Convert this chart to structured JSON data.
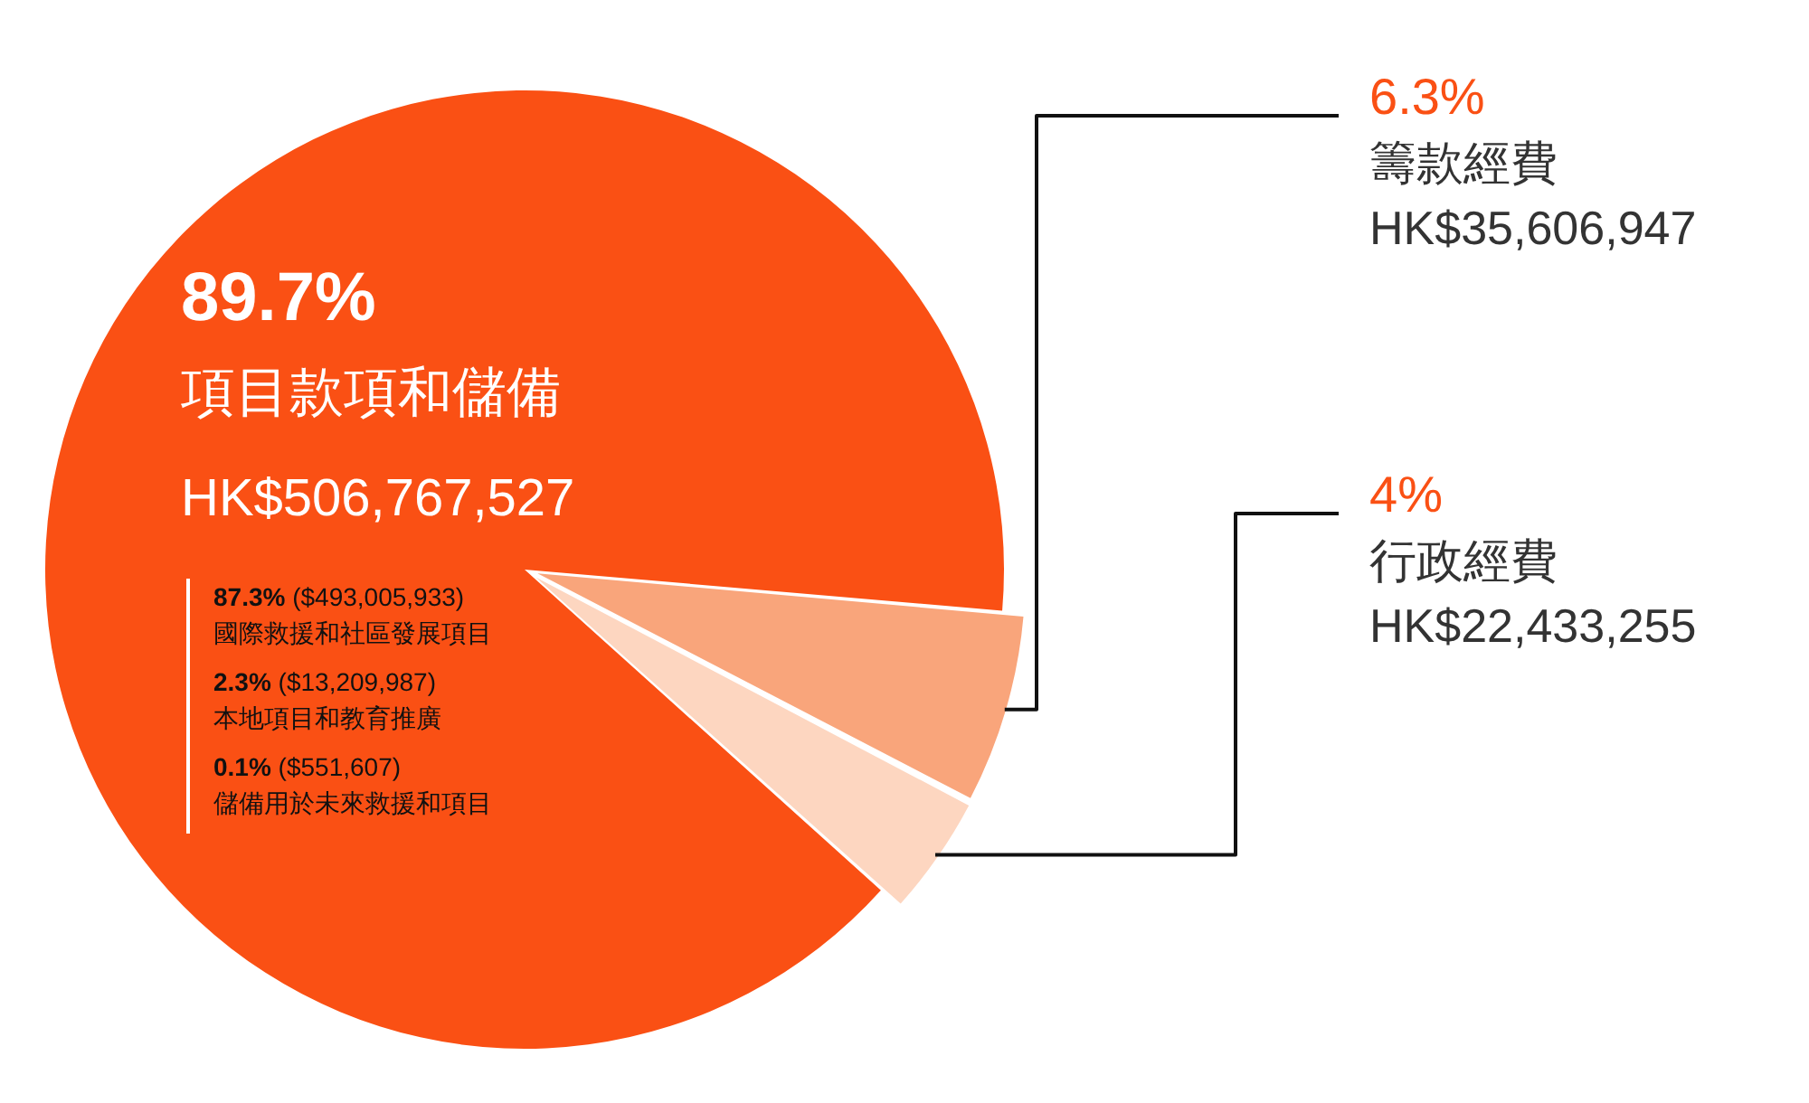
{
  "chart_data": {
    "type": "pie",
    "categories": [
      "項目款項和儲備",
      "籌款經費",
      "行政經費"
    ],
    "values": [
      89.7,
      6.3,
      4
    ],
    "colors": [
      "#fa5014",
      "#f9a57b",
      "#fdd6c0"
    ],
    "value_labels": [
      "89.7%",
      "6.3%",
      "4%"
    ],
    "annotations": [
      "HK$506,767,527",
      "HK$35,606,947",
      "HK$22,433,255",
      "87.3% ($493,005,933)",
      "國際救援和社區發展項目",
      "2.3% ($13,209,987)",
      "本地項目和教育推廣",
      "0.1% ($551,607)",
      "儲備用於未來救援和項目"
    ]
  }
}
